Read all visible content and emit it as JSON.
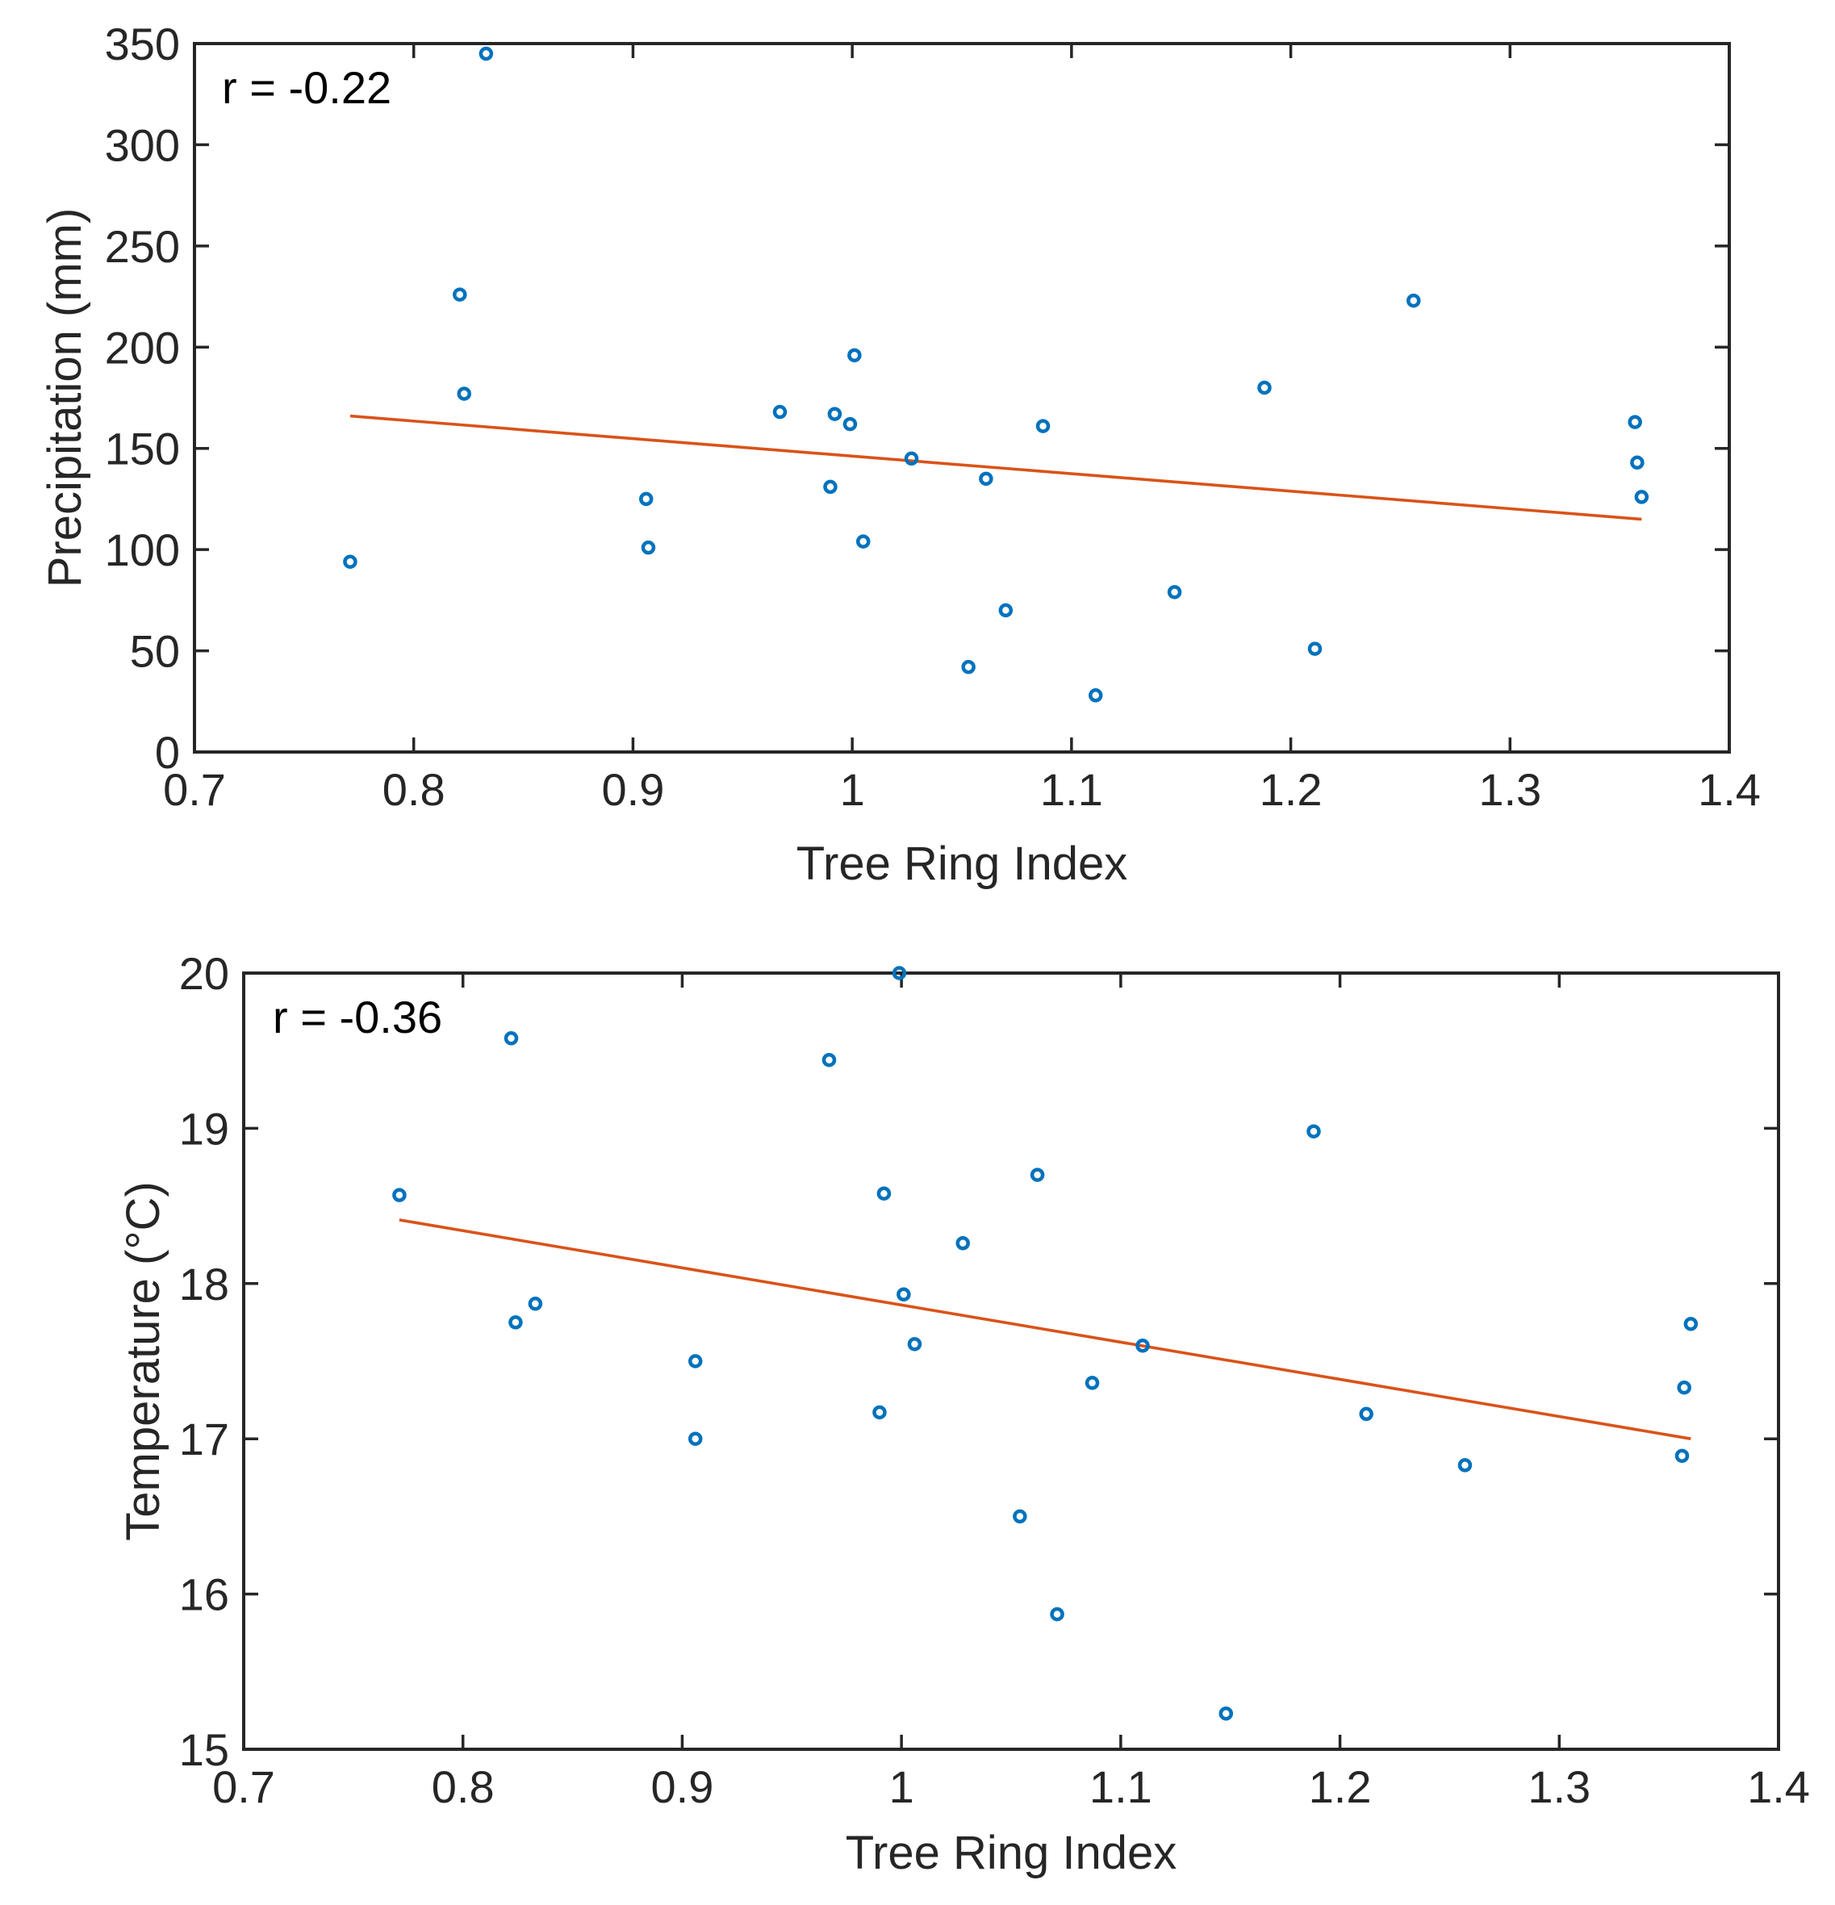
{
  "chart_data": [
    {
      "type": "scatter",
      "title": "",
      "xlabel": "Tree Ring Index",
      "ylabel": "Precipitation (mm)",
      "annotation": "r = -0.22",
      "xlim": [
        0.7,
        1.4
      ],
      "ylim": [
        0,
        350
      ],
      "xticks": [
        0.7,
        0.8,
        0.9,
        1.0,
        1.1,
        1.2,
        1.3,
        1.4
      ],
      "xtick_labels": [
        "0.7",
        "0.8",
        "0.9",
        "1",
        "1.1",
        "1.2",
        "1.3",
        "1.4"
      ],
      "yticks": [
        0,
        50,
        100,
        150,
        200,
        250,
        300,
        350
      ],
      "ytick_labels": [
        "0",
        "50",
        "100",
        "150",
        "200",
        "250",
        "300",
        "350"
      ],
      "grid": false,
      "marker_color": "#0072BD",
      "fit_color": "#D95319",
      "points": {
        "x": [
          0.771,
          0.821,
          0.823,
          0.833,
          0.906,
          0.907,
          0.967,
          0.99,
          0.992,
          0.999,
          1.001,
          1.005,
          1.027,
          1.053,
          1.061,
          1.07,
          1.087,
          1.111,
          1.147,
          1.188,
          1.211,
          1.256,
          1.357,
          1.358,
          1.36
        ],
        "y": [
          94,
          226,
          177,
          345,
          125,
          101,
          168,
          131,
          167,
          162,
          196,
          104,
          145,
          42,
          135,
          70,
          161,
          28,
          79,
          180,
          51,
          223,
          163,
          143,
          126
        ]
      },
      "fit_line": {
        "x": [
          0.771,
          1.36
        ],
        "y": [
          166,
          115
        ]
      }
    },
    {
      "type": "scatter",
      "title": "",
      "xlabel": "Tree Ring Index",
      "ylabel": "Temperature (°C)",
      "annotation": "r = -0.36",
      "xlim": [
        0.7,
        1.4
      ],
      "ylim": [
        15,
        20
      ],
      "xticks": [
        0.7,
        0.8,
        0.9,
        1.0,
        1.1,
        1.2,
        1.3,
        1.4
      ],
      "xtick_labels": [
        "0.7",
        "0.8",
        "0.9",
        "1",
        "1.1",
        "1.2",
        "1.3",
        "1.4"
      ],
      "yticks": [
        15,
        16,
        17,
        18,
        19,
        20
      ],
      "ytick_labels": [
        "15",
        "16",
        "17",
        "18",
        "19",
        "20"
      ],
      "grid": false,
      "marker_color": "#0072BD",
      "fit_color": "#D95319",
      "points": {
        "x": [
          0.771,
          0.822,
          0.824,
          0.833,
          0.906,
          0.906,
          0.967,
          0.99,
          0.992,
          0.999,
          1.001,
          1.006,
          1.028,
          1.054,
          1.062,
          1.071,
          1.087,
          1.11,
          1.148,
          1.188,
          1.212,
          1.257,
          1.356,
          1.357,
          1.36
        ],
        "y": [
          18.57,
          19.58,
          17.75,
          17.87,
          17.5,
          17.0,
          19.44,
          17.17,
          18.58,
          20.0,
          17.93,
          17.61,
          18.26,
          16.5,
          18.7,
          15.87,
          17.36,
          17.6,
          15.23,
          18.98,
          17.16,
          16.83,
          16.89,
          17.33,
          17.74
        ]
      },
      "fit_line": {
        "x": [
          0.771,
          1.36
        ],
        "y": [
          18.41,
          17.0
        ]
      }
    }
  ]
}
